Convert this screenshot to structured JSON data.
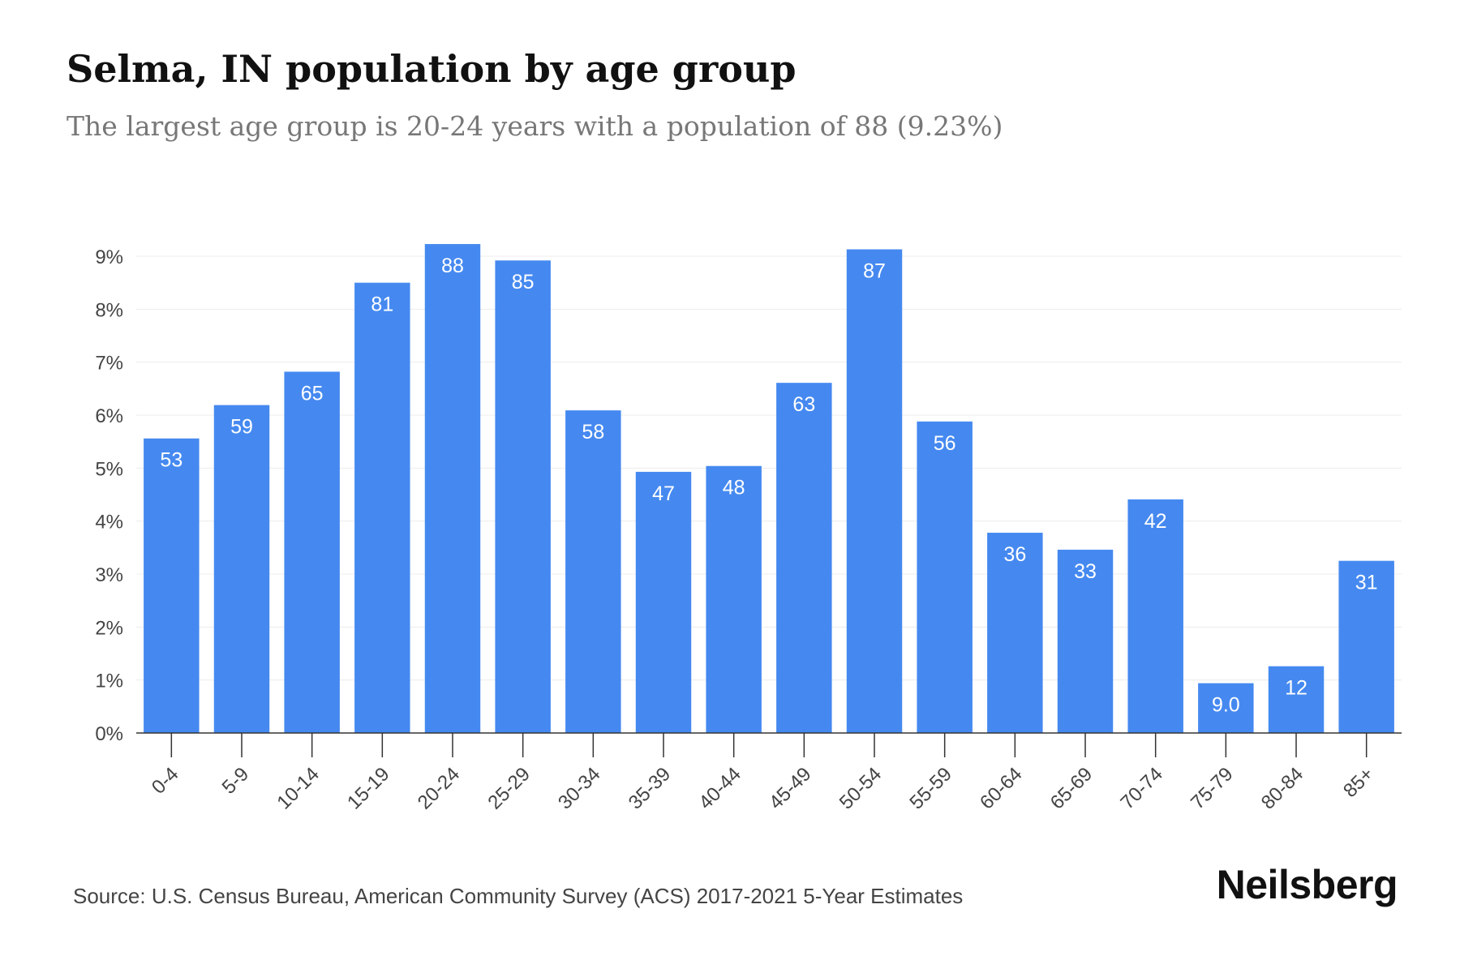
{
  "chart_data": {
    "type": "bar",
    "title": "Selma, IN population by age group",
    "subtitle": "The largest age group is 20-24 years with a population of 88 (9.23%)",
    "xlabel": "",
    "ylabel": "",
    "categories": [
      "0-4",
      "5-9",
      "10-14",
      "15-19",
      "20-24",
      "25-29",
      "30-34",
      "35-39",
      "40-44",
      "45-49",
      "50-54",
      "55-59",
      "60-64",
      "65-69",
      "70-74",
      "75-79",
      "80-84",
      "85+"
    ],
    "values": [
      5.56,
      6.19,
      6.82,
      8.5,
      9.23,
      8.92,
      6.09,
      4.93,
      5.04,
      6.61,
      9.13,
      5.88,
      3.78,
      3.46,
      4.41,
      0.94,
      1.26,
      3.25
    ],
    "data_labels": [
      "53",
      "59",
      "65",
      "81",
      "88",
      "85",
      "58",
      "47",
      "48",
      "63",
      "87",
      "56",
      "36",
      "33",
      "42",
      "9.0",
      "12",
      "31"
    ],
    "yticks": [
      "0%",
      "1%",
      "2%",
      "3%",
      "4%",
      "5%",
      "6%",
      "7%",
      "8%",
      "9%"
    ],
    "ylim": [
      0,
      9
    ],
    "grid": true,
    "bar_color": "#4589f0"
  },
  "footer": {
    "source": "Source: U.S. Census Bureau, American Community Survey (ACS) 2017-2021 5-Year Estimates",
    "brand": "Neilsberg"
  }
}
